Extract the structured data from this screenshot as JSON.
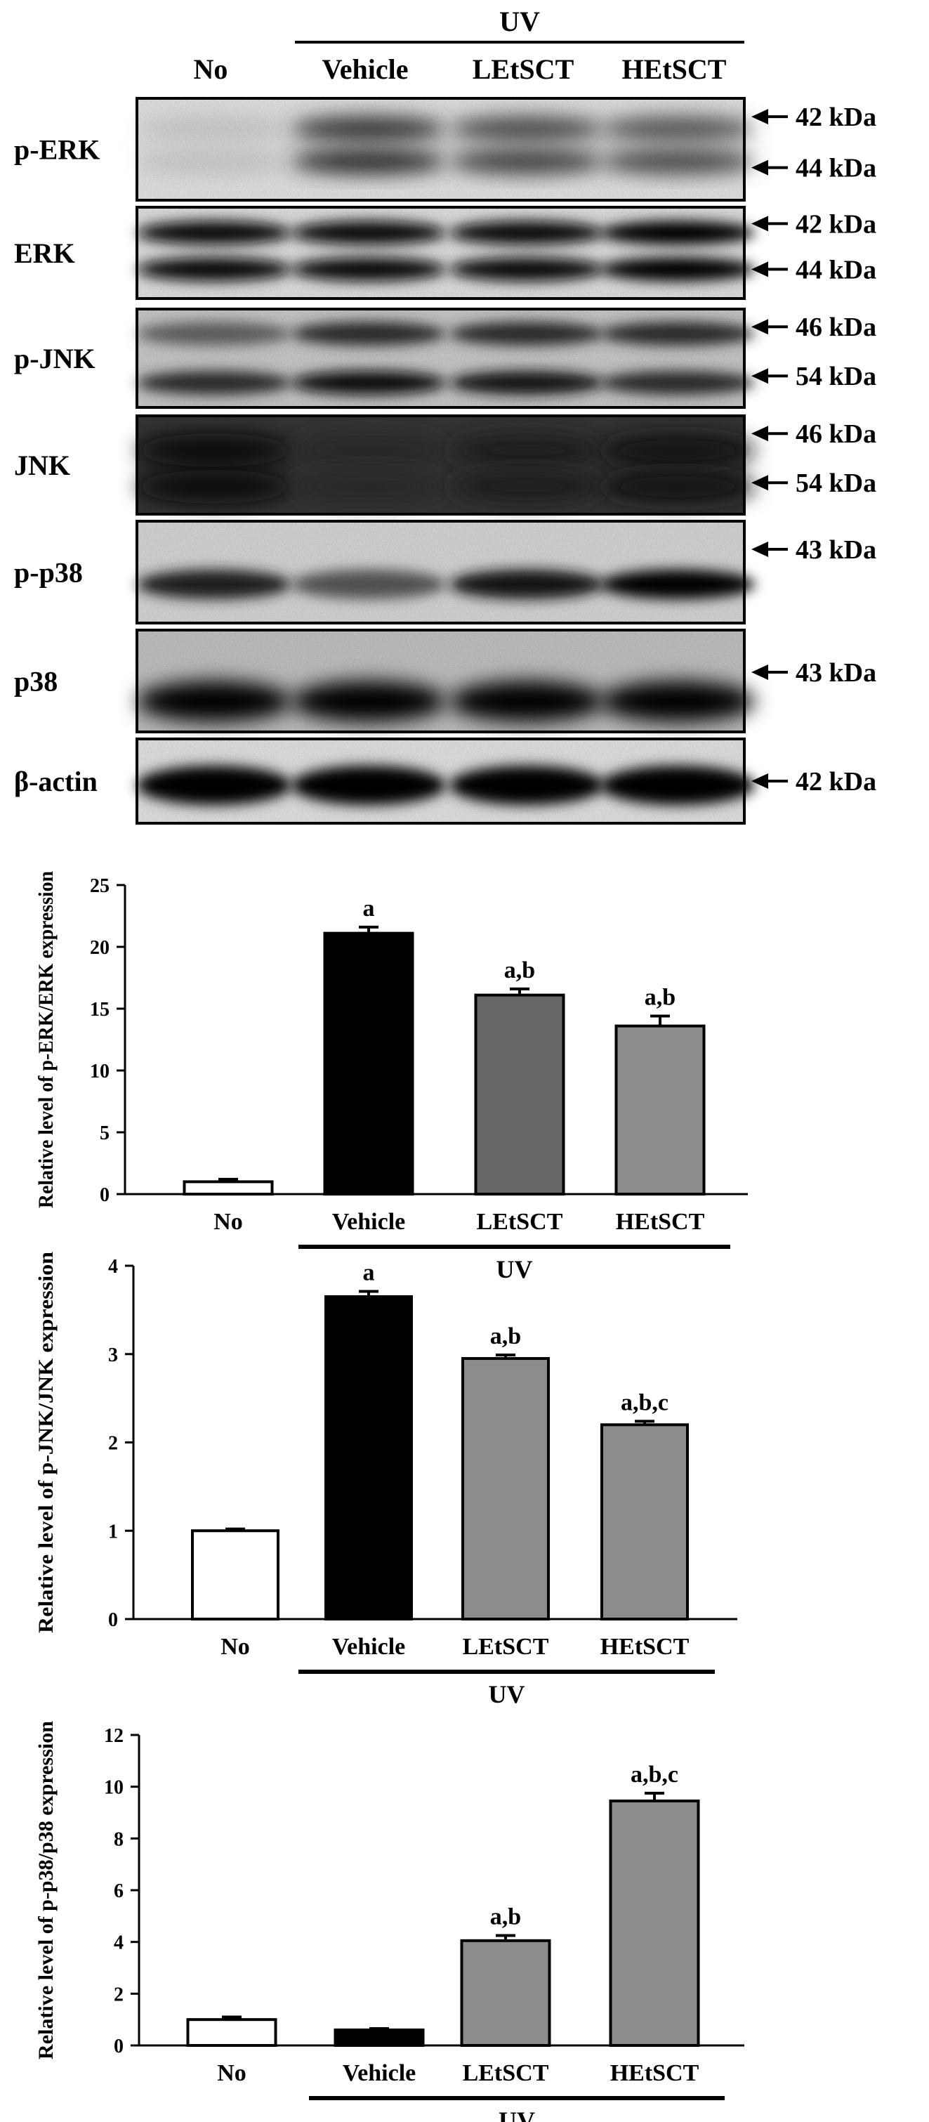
{
  "blot": {
    "header_group": "UV",
    "lanes": [
      "No",
      "Vehicle",
      "LEtSCT",
      "HEtSCT"
    ],
    "rows": [
      {
        "label": "p-ERK",
        "markers": [
          "42 kDa",
          "44 kDa"
        ],
        "style": "perk"
      },
      {
        "label": "ERK",
        "markers": [
          "42 kDa",
          "44 kDa"
        ],
        "style": "erk"
      },
      {
        "label": "p-JNK",
        "markers": [
          "46 kDa",
          "54 kDa"
        ],
        "style": "pjnk"
      },
      {
        "label": "JNK",
        "markers": [
          "46 kDa",
          "54 kDa"
        ],
        "style": "jnk"
      },
      {
        "label": "p-p38",
        "markers": [
          "43 kDa"
        ],
        "style": "pp38"
      },
      {
        "label": "p38",
        "markers": [
          "43 kDa"
        ],
        "style": "p38"
      },
      {
        "label": "β-actin",
        "markers": [
          "42 kDa"
        ],
        "style": "actin"
      }
    ]
  },
  "chart_data": [
    {
      "type": "bar",
      "ylabel": "Relative level of p-ERK/ERK expression",
      "categories": [
        "No",
        "Vehicle",
        "LEtSCT",
        "HEtSCT"
      ],
      "values": [
        1.0,
        21.1,
        16.1,
        13.6
      ],
      "errors": [
        0.2,
        0.5,
        0.5,
        0.8
      ],
      "significance": [
        "",
        "a",
        "a,b",
        "a,b"
      ],
      "bar_colors": [
        "#ffffff",
        "#000000",
        "#666666",
        "#8c8c8c"
      ],
      "ylim": [
        0,
        25
      ],
      "yticks": [
        0,
        5,
        10,
        15,
        20,
        25
      ],
      "group_label": "UV"
    },
    {
      "type": "bar",
      "ylabel": "Relative level of p-JNK/JNK expression",
      "categories": [
        "No",
        "Vehicle",
        "LEtSCT",
        "HEtSCT"
      ],
      "values": [
        1.0,
        3.65,
        2.95,
        2.2
      ],
      "errors": [
        0.02,
        0.06,
        0.04,
        0.04
      ],
      "significance": [
        "",
        "a",
        "a,b",
        "a,b,c"
      ],
      "bar_colors": [
        "#ffffff",
        "#000000",
        "#8c8c8c",
        "#8c8c8c"
      ],
      "ylim": [
        0,
        4
      ],
      "yticks": [
        0,
        1,
        2,
        3,
        4
      ],
      "group_label": "UV"
    },
    {
      "type": "bar",
      "ylabel": "Relative level of p-p38/p38 expression",
      "categories": [
        "No",
        "Vehicle",
        "LEtSCT",
        "HEtSCT"
      ],
      "values": [
        1.0,
        0.6,
        4.05,
        9.45
      ],
      "errors": [
        0.1,
        0.05,
        0.2,
        0.3
      ],
      "significance": [
        "",
        "",
        "a,b",
        "a,b,c"
      ],
      "bar_colors": [
        "#ffffff",
        "#000000",
        "#8c8c8c",
        "#8c8c8c"
      ],
      "ylim": [
        0,
        12
      ],
      "yticks": [
        0,
        2,
        4,
        6,
        8,
        10,
        12
      ],
      "group_label": "UV"
    }
  ]
}
